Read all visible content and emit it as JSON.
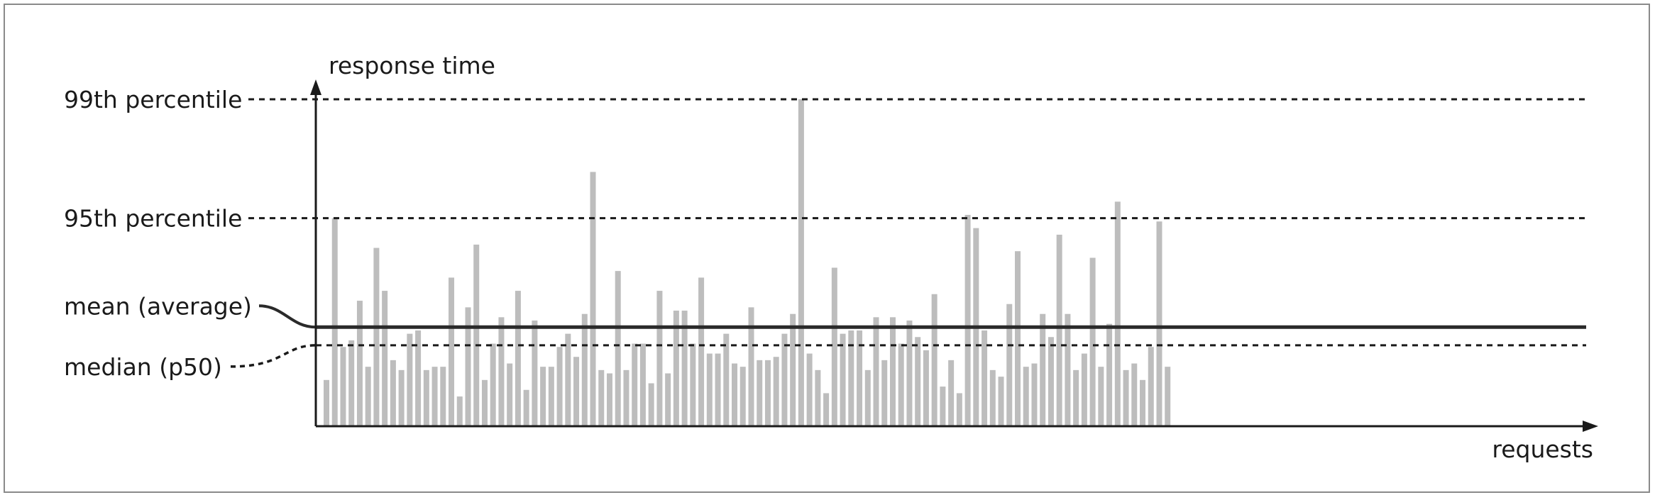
{
  "chart_data": {
    "type": "bar",
    "title": "",
    "ylabel": "response time",
    "xlabel": "requests",
    "ylim": [
      0,
      100
    ],
    "reference_lines": [
      {
        "key": "p99",
        "label": "99th percentile",
        "value": 99,
        "style": "dashed"
      },
      {
        "key": "p95",
        "label": "95th percentile",
        "value": 63,
        "style": "dashed"
      },
      {
        "key": "mean",
        "label": "mean (average)",
        "value": 30,
        "style": "solid"
      },
      {
        "key": "median",
        "label": "median (p50)",
        "value": 24.5,
        "style": "dashed"
      }
    ],
    "values": [
      14,
      63,
      24,
      26,
      38,
      18,
      54,
      41,
      20,
      17,
      28,
      29,
      17,
      18,
      18,
      45,
      9,
      36,
      55,
      14,
      25,
      33,
      19,
      41,
      11,
      32,
      18,
      18,
      24,
      28,
      21,
      34,
      77,
      17,
      16,
      47,
      17,
      25,
      25,
      13,
      41,
      16,
      35,
      35,
      25,
      45,
      22,
      22,
      28,
      19,
      18,
      36,
      20,
      20,
      21,
      28,
      34,
      99,
      22,
      17,
      10,
      48,
      28,
      29,
      29,
      17,
      33,
      20,
      33,
      25,
      32,
      27,
      23,
      40,
      12,
      20,
      10,
      64,
      60,
      29,
      17,
      15,
      37,
      53,
      18,
      19,
      34,
      27,
      58,
      34,
      17,
      22,
      51,
      18,
      31,
      68,
      17,
      19,
      14,
      24,
      62,
      18
    ]
  },
  "colors": {
    "bar": "#bdbdbd",
    "line": "#1a1a1a",
    "frame": "#8a8a8a"
  }
}
